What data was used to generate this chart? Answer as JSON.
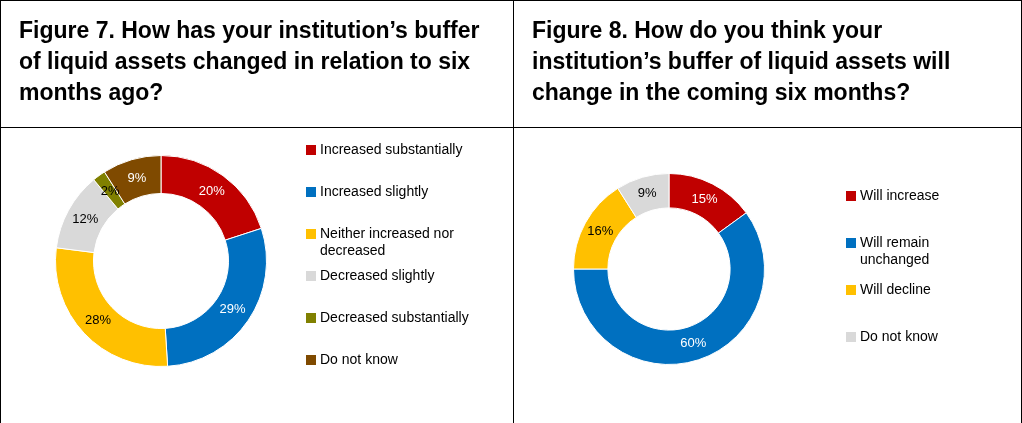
{
  "chart_data": [
    {
      "type": "donut",
      "title": "Figure 7. How has your institution’s buffer of liquid assets changed in relation to six months ago?",
      "categories": [
        "Increased substantially",
        "Increased slightly",
        "Neither increased nor decreased",
        "Decreased slightly",
        "Decreased substantially",
        "Do not know"
      ],
      "values": [
        20,
        29,
        28,
        12,
        2,
        9
      ],
      "colors": [
        "#c00000",
        "#0070c0",
        "#ffc000",
        "#d9d9d9",
        "#808000",
        "#7f4a00"
      ],
      "value_labels": [
        "20%",
        "29%",
        "28%",
        "12%",
        "2%",
        "9%"
      ],
      "legend": "right"
    },
    {
      "type": "donut",
      "title": "Figure 8. How do you think your institution’s buffer of liquid assets will change in the coming six months?",
      "categories": [
        "Will increase",
        "Will remain unchanged",
        "Will decline",
        "Do not know"
      ],
      "values": [
        15,
        60,
        16,
        9
      ],
      "colors": [
        "#c00000",
        "#0070c0",
        "#ffc000",
        "#d9d9d9"
      ],
      "value_labels": [
        "15%",
        "60%",
        "16%",
        "9%"
      ],
      "legend": "right"
    }
  ]
}
